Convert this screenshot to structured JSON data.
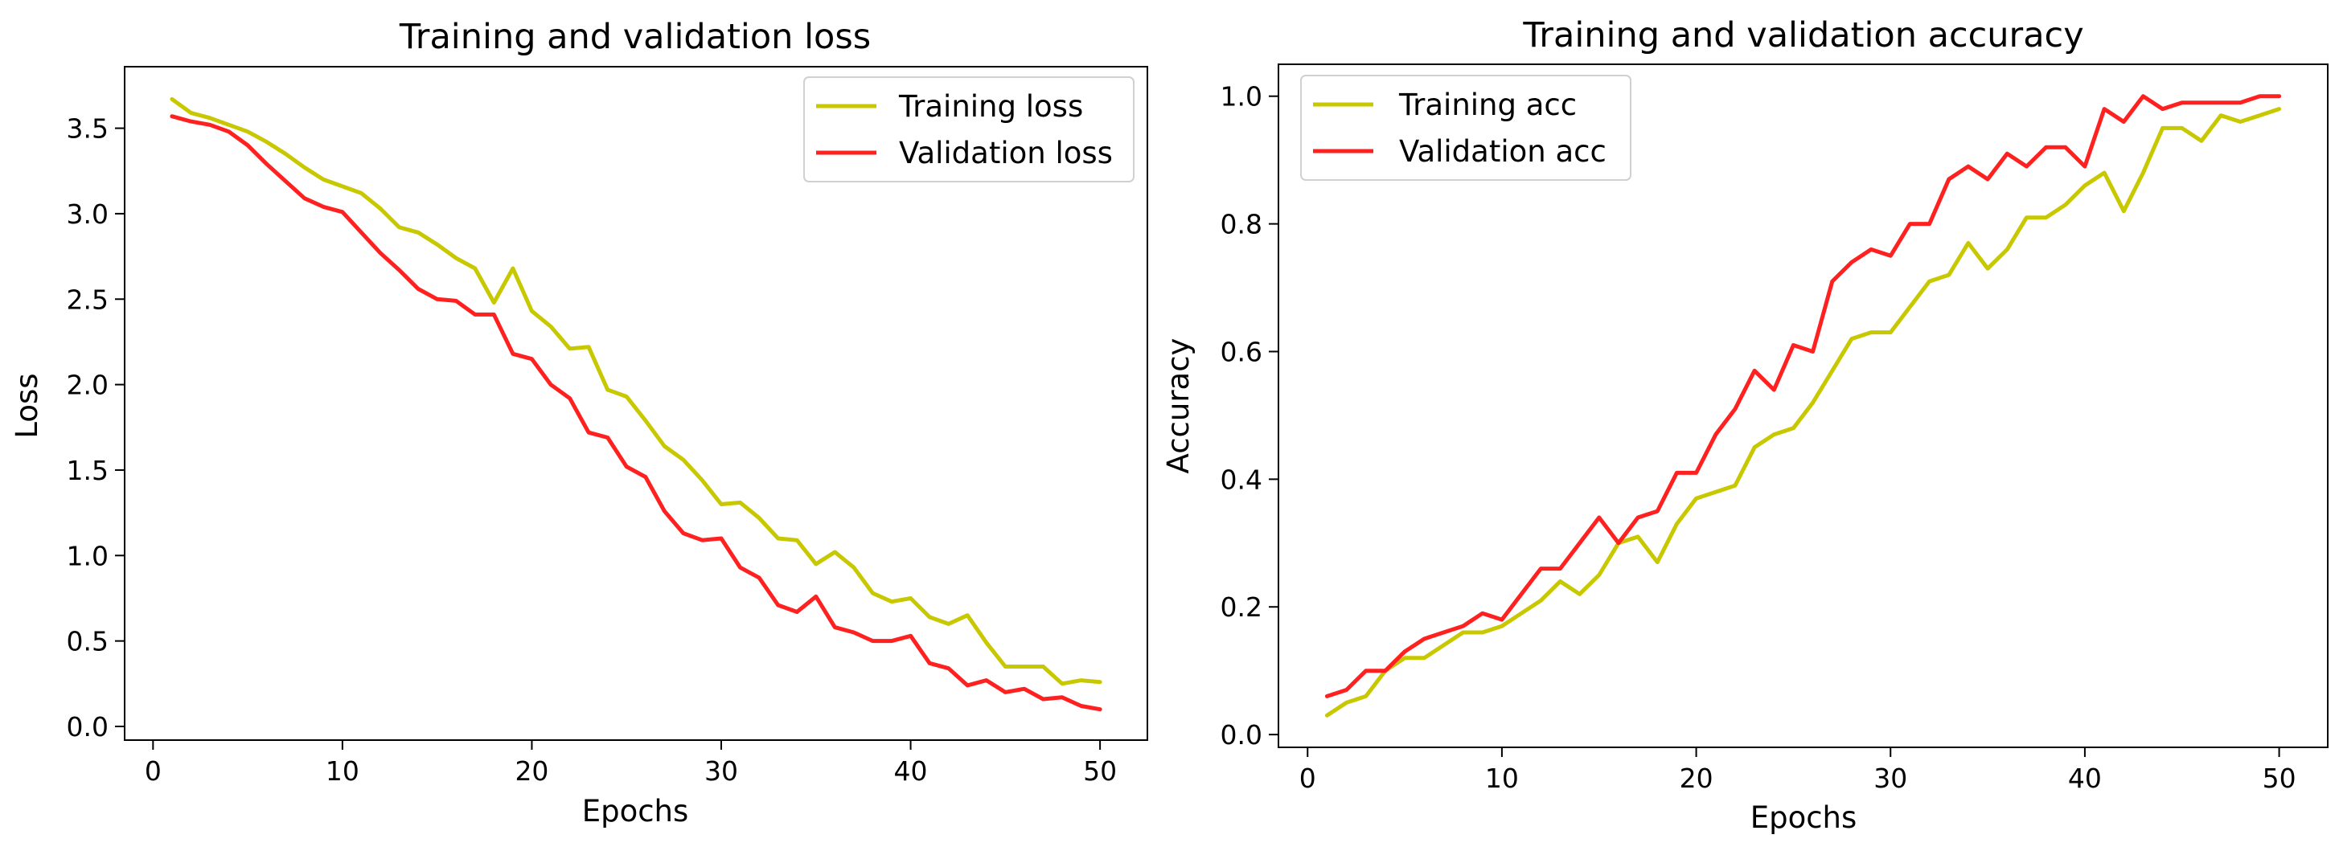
{
  "chart_data": [
    {
      "type": "line",
      "title": "Training and validation loss",
      "xlabel": "Epochs",
      "ylabel": "Loss",
      "xlim": [
        -1.5,
        52.5
      ],
      "ylim": [
        -0.08,
        3.86
      ],
      "xticks": [
        0,
        10,
        20,
        30,
        40,
        50
      ],
      "xtick_labels": [
        "0",
        "10",
        "20",
        "30",
        "40",
        "50"
      ],
      "yticks": [
        0.0,
        0.5,
        1.0,
        1.5,
        2.0,
        2.5,
        3.0,
        3.5
      ],
      "ytick_labels": [
        "0.0",
        "0.5",
        "1.0",
        "1.5",
        "2.0",
        "2.5",
        "3.0",
        "3.5"
      ],
      "legend_position": "top-right",
      "grid": false,
      "x": [
        1,
        2,
        3,
        4,
        5,
        6,
        7,
        8,
        9,
        10,
        11,
        12,
        13,
        14,
        15,
        16,
        17,
        18,
        19,
        20,
        21,
        22,
        23,
        24,
        25,
        26,
        27,
        28,
        29,
        30,
        31,
        32,
        33,
        34,
        35,
        36,
        37,
        38,
        39,
        40,
        41,
        42,
        43,
        44,
        45,
        46,
        47,
        48,
        49,
        50
      ],
      "series": [
        {
          "name": "Training loss",
          "color": "#c8c800",
          "values": [
            3.67,
            3.59,
            3.56,
            3.52,
            3.48,
            3.42,
            3.35,
            3.27,
            3.2,
            3.16,
            3.12,
            3.03,
            2.92,
            2.89,
            2.82,
            2.74,
            2.68,
            2.48,
            2.68,
            2.43,
            2.34,
            2.21,
            2.22,
            1.97,
            1.93,
            1.79,
            1.64,
            1.56,
            1.44,
            1.3,
            1.31,
            1.22,
            1.1,
            1.09,
            0.95,
            1.02,
            0.93,
            0.78,
            0.73,
            0.75,
            0.64,
            0.6,
            0.65,
            0.49,
            0.35,
            0.35,
            0.35,
            0.25,
            0.27,
            0.26
          ]
        },
        {
          "name": "Validation loss",
          "color": "#ff2020",
          "values": [
            3.57,
            3.54,
            3.52,
            3.48,
            3.4,
            3.29,
            3.19,
            3.09,
            3.04,
            3.01,
            2.89,
            2.77,
            2.67,
            2.56,
            2.5,
            2.49,
            2.41,
            2.41,
            2.18,
            2.15,
            2.0,
            1.92,
            1.72,
            1.69,
            1.52,
            1.46,
            1.26,
            1.13,
            1.09,
            1.1,
            0.93,
            0.87,
            0.71,
            0.67,
            0.76,
            0.58,
            0.55,
            0.5,
            0.5,
            0.53,
            0.37,
            0.34,
            0.24,
            0.27,
            0.2,
            0.22,
            0.16,
            0.17,
            0.12,
            0.1
          ]
        }
      ]
    },
    {
      "type": "line",
      "title": "Training and validation accuracy",
      "xlabel": "Epochs",
      "ylabel": "Accuracy",
      "xlim": [
        -1.5,
        52.5
      ],
      "ylim": [
        -0.02,
        1.05
      ],
      "xticks": [
        0,
        10,
        20,
        30,
        40,
        50
      ],
      "xtick_labels": [
        "0",
        "10",
        "20",
        "30",
        "40",
        "50"
      ],
      "yticks": [
        0.0,
        0.2,
        0.4,
        0.6,
        0.8,
        1.0
      ],
      "ytick_labels": [
        "0.0",
        "0.2",
        "0.4",
        "0.6",
        "0.8",
        "1.0"
      ],
      "legend_position": "top-left",
      "grid": false,
      "x": [
        1,
        2,
        3,
        4,
        5,
        6,
        7,
        8,
        9,
        10,
        11,
        12,
        13,
        14,
        15,
        16,
        17,
        18,
        19,
        20,
        21,
        22,
        23,
        24,
        25,
        26,
        27,
        28,
        29,
        30,
        31,
        32,
        33,
        34,
        35,
        36,
        37,
        38,
        39,
        40,
        41,
        42,
        43,
        44,
        45,
        46,
        47,
        48,
        49,
        50
      ],
      "series": [
        {
          "name": "Training acc",
          "color": "#c8c800",
          "values": [
            0.03,
            0.05,
            0.06,
            0.1,
            0.12,
            0.12,
            0.14,
            0.16,
            0.16,
            0.17,
            0.19,
            0.21,
            0.24,
            0.22,
            0.25,
            0.3,
            0.31,
            0.27,
            0.33,
            0.37,
            0.38,
            0.39,
            0.45,
            0.47,
            0.48,
            0.52,
            0.57,
            0.62,
            0.63,
            0.63,
            0.67,
            0.71,
            0.72,
            0.77,
            0.73,
            0.76,
            0.81,
            0.81,
            0.83,
            0.86,
            0.88,
            0.82,
            0.88,
            0.95,
            0.95,
            0.93,
            0.97,
            0.96,
            0.97,
            0.98
          ]
        },
        {
          "name": "Validation acc",
          "color": "#ff2020",
          "values": [
            0.06,
            0.07,
            0.1,
            0.1,
            0.13,
            0.15,
            0.16,
            0.17,
            0.19,
            0.18,
            0.22,
            0.26,
            0.26,
            0.3,
            0.34,
            0.3,
            0.34,
            0.35,
            0.41,
            0.41,
            0.47,
            0.51,
            0.57,
            0.54,
            0.61,
            0.6,
            0.71,
            0.74,
            0.76,
            0.75,
            0.8,
            0.8,
            0.87,
            0.89,
            0.87,
            0.91,
            0.89,
            0.92,
            0.92,
            0.89,
            0.98,
            0.96,
            1.0,
            0.98,
            0.99,
            0.99,
            0.99,
            0.99,
            1.0,
            1.0
          ]
        }
      ]
    }
  ]
}
